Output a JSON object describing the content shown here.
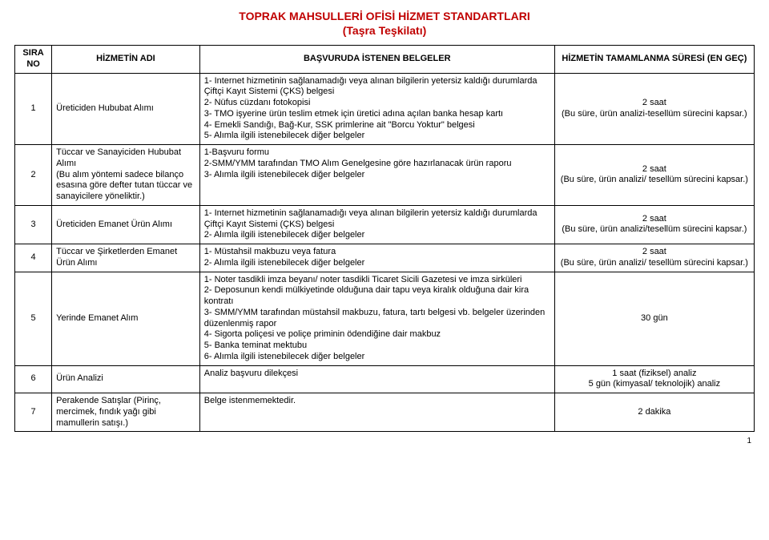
{
  "title": "TOPRAK MAHSULLERİ OFİSİ HİZMET STANDARTLARI",
  "subtitle": "(Taşra Teşkilatı)",
  "headers": {
    "no": "SIRA NO",
    "name": "HİZMETİN ADI",
    "docs": "BAŞVURUDA İSTENEN BELGELER",
    "dur": "HİZMETİN TAMAMLANMA SÜRESİ (EN GEÇ)"
  },
  "rows": [
    {
      "no": "1",
      "name": "Üreticiden Hububat Alımı",
      "docs": [
        "1- Internet hizmetinin sağlanamadığı veya alınan bilgilerin yetersiz kaldığı durumlarda Çiftçi Kayıt Sistemi (ÇKS) belgesi",
        "2- Nüfus cüzdanı fotokopisi",
        "3- TMO işyerine ürün teslim etmek için üretici adına açılan banka hesap kartı",
        "4- Emekli Sandığı, Bağ-Kur, SSK primlerine ait \"Borcu Yoktur\" belgesi",
        "5- Alımla ilgili istenebilecek diğer belgeler"
      ],
      "dur": "2 saat\n(Bu süre, ürün analizi-tesellüm sürecini kapsar.)"
    },
    {
      "no": "2",
      "name": "Tüccar ve Sanayiciden Hububat Alımı\n(Bu alım yöntemi sadece bilanço esasına göre defter tutan tüccar ve sanayicilere yöneliktir.)",
      "docs": [
        "1-Başvuru formu",
        "2-SMM/YMM tarafından TMO Alım Genelgesine göre hazırlanacak ürün raporu",
        "3- Alımla ilgili istenebilecek diğer belgeler"
      ],
      "dur": "2 saat\n(Bu süre, ürün analizi/ tesellüm sürecini kapsar.)"
    },
    {
      "no": "3",
      "name": "Üreticiden Emanet Ürün Alımı",
      "docs": [
        "1- Internet hizmetinin sağlanamadığı veya alınan bilgilerin yetersiz kaldığı durumlarda Çiftçi Kayıt Sistemi (ÇKS) belgesi",
        "2- Alımla ilgili istenebilecek diğer belgeler"
      ],
      "dur": "2 saat\n(Bu süre, ürün analizi/tesellüm sürecini kapsar.)"
    },
    {
      "no": "4",
      "name": "Tüccar ve Şirketlerden Emanet Ürün Alımı",
      "docs": [
        "1- Müstahsil makbuzu veya fatura",
        "2- Alımla ilgili istenebilecek diğer belgeler"
      ],
      "dur": "2 saat\n(Bu süre, ürün analizi/ tesellüm sürecini kapsar.)"
    },
    {
      "no": "5",
      "name": "Yerinde Emanet Alım",
      "docs": [
        "1- Noter tasdikli imza beyanı/ noter tasdikli Ticaret Sicili Gazetesi  ve imza sirküleri",
        "2- Deposunun kendi mülkiyetinde olduğuna dair tapu veya kiralık olduğuna dair kira kontratı",
        "3- SMM/YMM tarafından müstahsil makbuzu, fatura, tartı belgesi vb. belgeler üzerinden düzenlenmiş rapor",
        "4- Sigorta poliçesi ve poliçe priminin ödendiğine dair makbuz",
        "5- Banka teminat mektubu",
        "6- Alımla ilgili istenebilecek diğer belgeler"
      ],
      "dur": "30 gün"
    },
    {
      "no": "6",
      "name": "Ürün Analizi",
      "docs": [
        "Analiz başvuru dilekçesi"
      ],
      "dur": "1 saat (fiziksel) analiz\n5 gün (kimyasal/ teknolojik) analiz"
    },
    {
      "no": "7",
      "name": "Perakende Satışlar (Pirinç, mercimek, fındık yağı gibi mamullerin satışı.)",
      "docs": [
        "Belge istenmemektedir."
      ],
      "dur": "2 dakika"
    }
  ],
  "pagenum": "1"
}
